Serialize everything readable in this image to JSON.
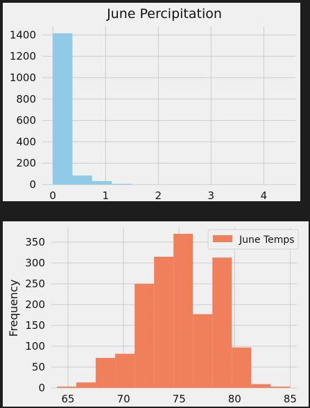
{
  "chart_data": [
    {
      "type": "bar",
      "title": "June Percipitation",
      "xlabel": "",
      "ylabel": "",
      "xlim": [
        -0.2,
        4.6
      ],
      "ylim": [
        0,
        1480
      ],
      "xticks": [
        0,
        1,
        2,
        3,
        4
      ],
      "yticks": [
        0,
        200,
        400,
        600,
        800,
        1000,
        1200,
        1400
      ],
      "grid": true,
      "color": "#8fcae7",
      "bins": [
        {
          "x0": 0.0,
          "x1": 0.372,
          "value": 1415
        },
        {
          "x0": 0.372,
          "x1": 0.744,
          "value": 85
        },
        {
          "x0": 0.744,
          "x1": 1.116,
          "value": 33
        },
        {
          "x0": 1.116,
          "x1": 1.488,
          "value": 7
        },
        {
          "x0": 1.488,
          "x1": 1.86,
          "value": 0
        },
        {
          "x0": 1.86,
          "x1": 2.232,
          "value": 0
        },
        {
          "x0": 2.232,
          "x1": 2.604,
          "value": 0
        },
        {
          "x0": 2.604,
          "x1": 2.976,
          "value": 0
        },
        {
          "x0": 2.976,
          "x1": 3.348,
          "value": 0
        },
        {
          "x0": 3.348,
          "x1": 3.72,
          "value": 0
        },
        {
          "x0": 3.72,
          "x1": 4.092,
          "value": 0
        },
        {
          "x0": 4.092,
          "x1": 4.464,
          "value": 0
        }
      ]
    },
    {
      "type": "bar",
      "title": "",
      "xlabel": "",
      "ylabel": "Frequency",
      "xlim": [
        63.5,
        85.6
      ],
      "ylim": [
        0,
        385
      ],
      "xticks": [
        65,
        70,
        75,
        80,
        85
      ],
      "yticks": [
        0,
        50,
        100,
        150,
        200,
        250,
        300,
        350
      ],
      "grid": true,
      "color": "#f07f5b",
      "legend": {
        "label": "June Temps",
        "position": "top-right"
      },
      "bins": [
        {
          "x0": 64.0,
          "x1": 65.75,
          "value": 3
        },
        {
          "x0": 65.75,
          "x1": 67.5,
          "value": 13
        },
        {
          "x0": 67.5,
          "x1": 69.25,
          "value": 72
        },
        {
          "x0": 69.25,
          "x1": 71.0,
          "value": 82
        },
        {
          "x0": 71.0,
          "x1": 72.75,
          "value": 250
        },
        {
          "x0": 72.75,
          "x1": 74.5,
          "value": 315
        },
        {
          "x0": 74.5,
          "x1": 76.25,
          "value": 370
        },
        {
          "x0": 76.25,
          "x1": 78.0,
          "value": 177
        },
        {
          "x0": 78.0,
          "x1": 79.75,
          "value": 313
        },
        {
          "x0": 79.75,
          "x1": 81.5,
          "value": 97
        },
        {
          "x0": 81.5,
          "x1": 83.25,
          "value": 9
        },
        {
          "x0": 83.25,
          "x1": 85.0,
          "value": 3
        }
      ]
    }
  ]
}
